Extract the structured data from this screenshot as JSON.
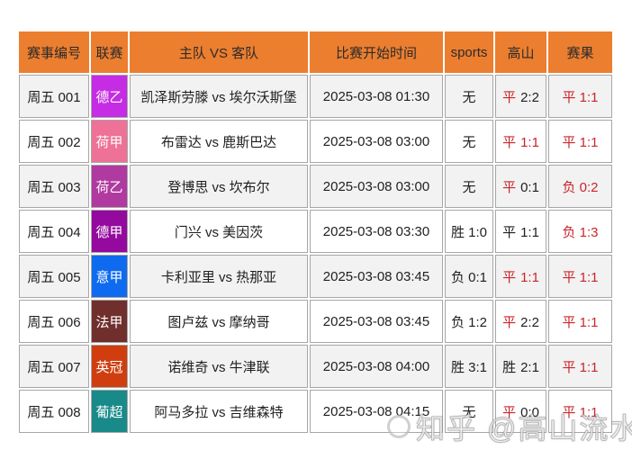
{
  "page": {
    "background": "#ffffff"
  },
  "table": {
    "header_bg": "#ec7e2f",
    "border_color": "#a6a6a6",
    "odd_row_bg": "#f2f2f2",
    "even_row_bg": "#ffffff",
    "text_color": "#1f1f1f",
    "red": "#c9252a",
    "headers": [
      "赛事编号",
      "联赛",
      "主队 VS 客队",
      "比赛开始时间",
      "sports",
      "高山",
      "赛果"
    ],
    "rows": [
      {
        "no": "周五 001",
        "league": "德乙",
        "league_bg": "#c52ce4",
        "teams": "凯泽斯劳滕 vs 埃尔沃斯堡",
        "time": "2025-03-08 01:30",
        "sports": "无",
        "gaoshan": {
          "outcome": "平",
          "score": "2:2",
          "outcome_color": "#c9252a",
          "score_color": "#1f1f1f"
        },
        "result": "平 1:1"
      },
      {
        "no": "周五 002",
        "league": "荷甲",
        "league_bg": "#ee7198",
        "teams": "布雷达 vs 鹿斯巴达",
        "time": "2025-03-08 03:00",
        "sports": "无",
        "gaoshan": {
          "outcome": "平",
          "score": "1:1",
          "outcome_color": "#c9252a",
          "score_color": "#c9252a"
        },
        "result": "平 1:1"
      },
      {
        "no": "周五 003",
        "league": "荷乙",
        "league_bg": "#b03aa0",
        "teams": "登博思 vs 坎布尔",
        "time": "2025-03-08 03:00",
        "sports": "无",
        "gaoshan": {
          "outcome": "平",
          "score": "0:1",
          "outcome_color": "#c9252a",
          "score_color": "#1f1f1f"
        },
        "result": "负 0:2"
      },
      {
        "no": "周五 004",
        "league": "德甲",
        "league_bg": "#94099e",
        "teams": "门兴 vs 美因茨",
        "time": "2025-03-08 03:30",
        "sports": "胜 1:0",
        "gaoshan": {
          "outcome": "平",
          "score": "1:1",
          "outcome_color": "#1f1f1f",
          "score_color": "#1f1f1f"
        },
        "result": "负 1:3"
      },
      {
        "no": "周五 005",
        "league": "意甲",
        "league_bg": "#0e6bef",
        "teams": "卡利亚里 vs 热那亚",
        "time": "2025-03-08 03:45",
        "sports": "负 0:1",
        "gaoshan": {
          "outcome": "平",
          "score": "1:1",
          "outcome_color": "#c9252a",
          "score_color": "#c9252a"
        },
        "result": "平 1:1"
      },
      {
        "no": "周五 006",
        "league": "法甲",
        "league_bg": "#702e2d",
        "teams": "图卢兹 vs 摩纳哥",
        "time": "2025-03-08 03:45",
        "sports": "负 1:2",
        "gaoshan": {
          "outcome": "平",
          "score": "2:2",
          "outcome_color": "#c9252a",
          "score_color": "#1f1f1f"
        },
        "result": "平 1:1"
      },
      {
        "no": "周五 007",
        "league": "英冠",
        "league_bg": "#d03e0f",
        "teams": "诺维奇 vs 牛津联",
        "time": "2025-03-08 04:00",
        "sports": "胜 3:1",
        "gaoshan": {
          "outcome": "胜",
          "score": "2:1",
          "outcome_color": "#1f1f1f",
          "score_color": "#1f1f1f"
        },
        "result": "平 1:1"
      },
      {
        "no": "周五 008",
        "league": "葡超",
        "league_bg": "#198a8a",
        "teams": "阿马多拉 vs 吉维森特",
        "time": "2025-03-08 04:15",
        "sports": "无",
        "gaoshan": {
          "outcome": "平",
          "score": "0:0",
          "outcome_color": "#c9252a",
          "score_color": "#1f1f1f"
        },
        "result": "平 1:1"
      }
    ]
  },
  "watermark": {
    "logo": "zhihu-logo",
    "text": "知乎 @高山流水"
  }
}
